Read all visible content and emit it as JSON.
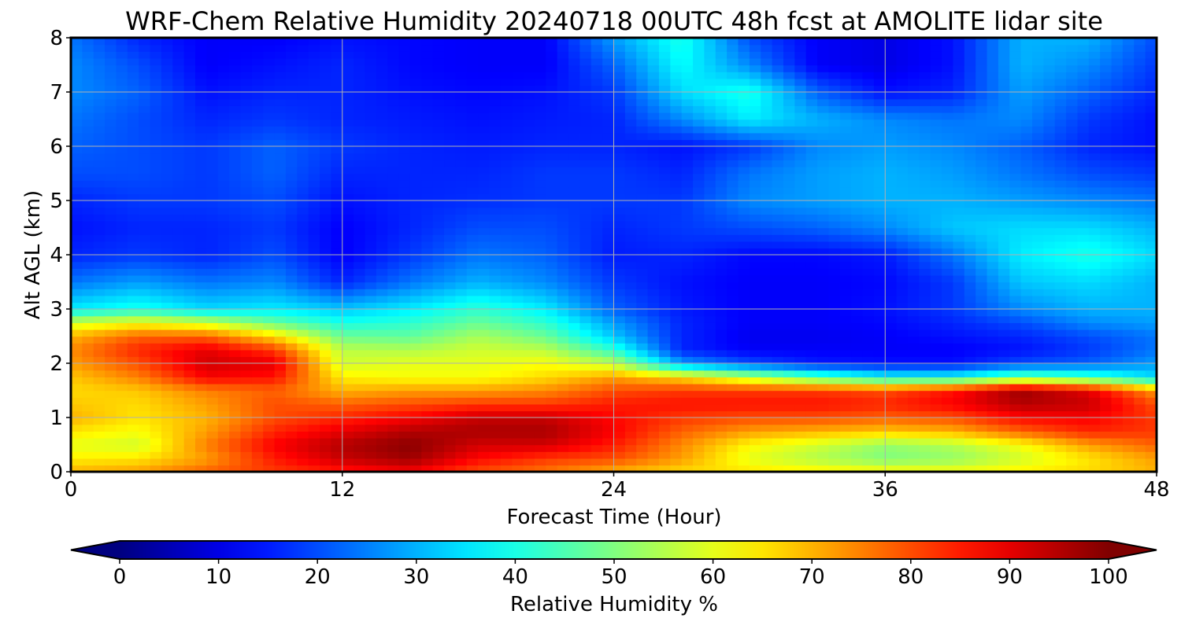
{
  "chart_data": {
    "type": "heatmap",
    "title": "WRF-Chem Relative Humidity 20240718 00UTC 48h fcst at AMOLITE lidar site",
    "xlabel": "Forecast Time (Hour)",
    "ylabel": "Alt AGL (km)",
    "xlim": [
      0,
      48
    ],
    "ylim": [
      0,
      8
    ],
    "xticks": [
      0,
      12,
      24,
      36,
      48
    ],
    "xtick_labels": [
      "0",
      "12",
      "24",
      "36",
      "48"
    ],
    "yticks": [
      0,
      1,
      2,
      3,
      4,
      5,
      6,
      7,
      8
    ],
    "ytick_labels": [
      "0",
      "1",
      "2",
      "3",
      "4",
      "5",
      "6",
      "7",
      "8"
    ],
    "grid": true,
    "colormap": "jet",
    "colorbar": {
      "label": "Relative Humidity %",
      "orientation": "horizontal",
      "range": [
        0,
        100
      ],
      "extend": "both",
      "ticks": [
        0,
        10,
        20,
        30,
        40,
        50,
        60,
        70,
        80,
        90,
        100
      ],
      "tick_labels": [
        "0",
        "10",
        "20",
        "30",
        "40",
        "50",
        "60",
        "70",
        "80",
        "90",
        "100"
      ]
    },
    "x": [
      0,
      3,
      6,
      9,
      12,
      15,
      18,
      21,
      24,
      27,
      30,
      33,
      36,
      39,
      42,
      45,
      48
    ],
    "y": [
      0,
      0.25,
      0.5,
      0.75,
      1.0,
      1.25,
      1.5,
      1.75,
      2.0,
      2.25,
      2.5,
      2.75,
      3.0,
      3.5,
      4.0,
      4.5,
      5.0,
      5.5,
      6.0,
      6.5,
      7.0,
      7.5,
      8.0
    ],
    "values": [
      [
        70,
        72,
        78,
        82,
        85,
        88,
        80,
        76,
        70,
        66,
        65,
        64,
        63,
        62,
        64,
        66,
        70
      ],
      [
        64,
        65,
        72,
        85,
        93,
        97,
        87,
        82,
        80,
        72,
        60,
        55,
        50,
        52,
        58,
        65,
        72
      ],
      [
        60,
        58,
        75,
        88,
        95,
        99,
        92,
        92,
        85,
        74,
        63,
        58,
        52,
        55,
        62,
        72,
        78
      ],
      [
        65,
        62,
        72,
        84,
        90,
        95,
        96,
        96,
        88,
        78,
        72,
        70,
        68,
        70,
        78,
        84,
        82
      ],
      [
        70,
        65,
        70,
        80,
        84,
        88,
        93,
        93,
        87,
        82,
        80,
        80,
        78,
        80,
        87,
        88,
        82
      ],
      [
        68,
        66,
        72,
        80,
        78,
        80,
        82,
        82,
        85,
        86,
        86,
        86,
        84,
        88,
        95,
        93,
        80
      ],
      [
        66,
        68,
        75,
        78,
        70,
        72,
        72,
        74,
        80,
        82,
        82,
        82,
        80,
        86,
        97,
        90,
        72
      ],
      [
        68,
        75,
        88,
        86,
        64,
        62,
        62,
        66,
        72,
        66,
        56,
        46,
        38,
        38,
        48,
        44,
        34
      ],
      [
        72,
        80,
        92,
        90,
        58,
        60,
        60,
        62,
        56,
        28,
        20,
        15,
        14,
        14,
        20,
        22,
        28
      ],
      [
        74,
        84,
        90,
        82,
        56,
        55,
        58,
        56,
        42,
        16,
        12,
        12,
        12,
        12,
        14,
        18,
        24
      ],
      [
        70,
        78,
        78,
        66,
        48,
        47,
        54,
        48,
        32,
        16,
        11,
        11,
        12,
        14,
        16,
        20,
        24
      ],
      [
        58,
        62,
        58,
        48,
        40,
        42,
        48,
        42,
        28,
        16,
        12,
        12,
        13,
        16,
        20,
        26,
        28
      ],
      [
        36,
        40,
        34,
        36,
        32,
        36,
        42,
        36,
        22,
        15,
        12,
        12,
        14,
        18,
        26,
        30,
        30
      ],
      [
        24,
        28,
        24,
        26,
        16,
        24,
        30,
        26,
        18,
        14,
        12,
        12,
        13,
        18,
        32,
        34,
        30
      ],
      [
        16,
        18,
        16,
        20,
        12,
        18,
        24,
        22,
        15,
        16,
        13,
        13,
        15,
        24,
        36,
        40,
        34
      ],
      [
        14,
        16,
        16,
        18,
        12,
        16,
        20,
        20,
        16,
        18,
        20,
        22,
        26,
        32,
        34,
        34,
        30
      ],
      [
        16,
        18,
        18,
        20,
        14,
        16,
        17,
        18,
        18,
        18,
        26,
        28,
        30,
        30,
        28,
        26,
        24
      ],
      [
        20,
        20,
        18,
        22,
        16,
        16,
        16,
        18,
        18,
        16,
        24,
        28,
        30,
        28,
        24,
        20,
        18
      ],
      [
        22,
        20,
        18,
        22,
        18,
        16,
        15,
        16,
        16,
        14,
        18,
        26,
        28,
        26,
        22,
        16,
        14
      ],
      [
        24,
        20,
        16,
        18,
        16,
        15,
        14,
        15,
        16,
        26,
        36,
        30,
        26,
        24,
        26,
        18,
        14
      ],
      [
        26,
        22,
        14,
        16,
        16,
        14,
        13,
        14,
        18,
        34,
        40,
        22,
        14,
        16,
        28,
        22,
        16
      ],
      [
        26,
        20,
        12,
        14,
        16,
        13,
        12,
        12,
        22,
        38,
        26,
        12,
        10,
        14,
        30,
        26,
        18
      ],
      [
        24,
        16,
        12,
        12,
        14,
        13,
        12,
        12,
        28,
        40,
        20,
        12,
        10,
        14,
        30,
        30,
        20
      ]
    ]
  }
}
